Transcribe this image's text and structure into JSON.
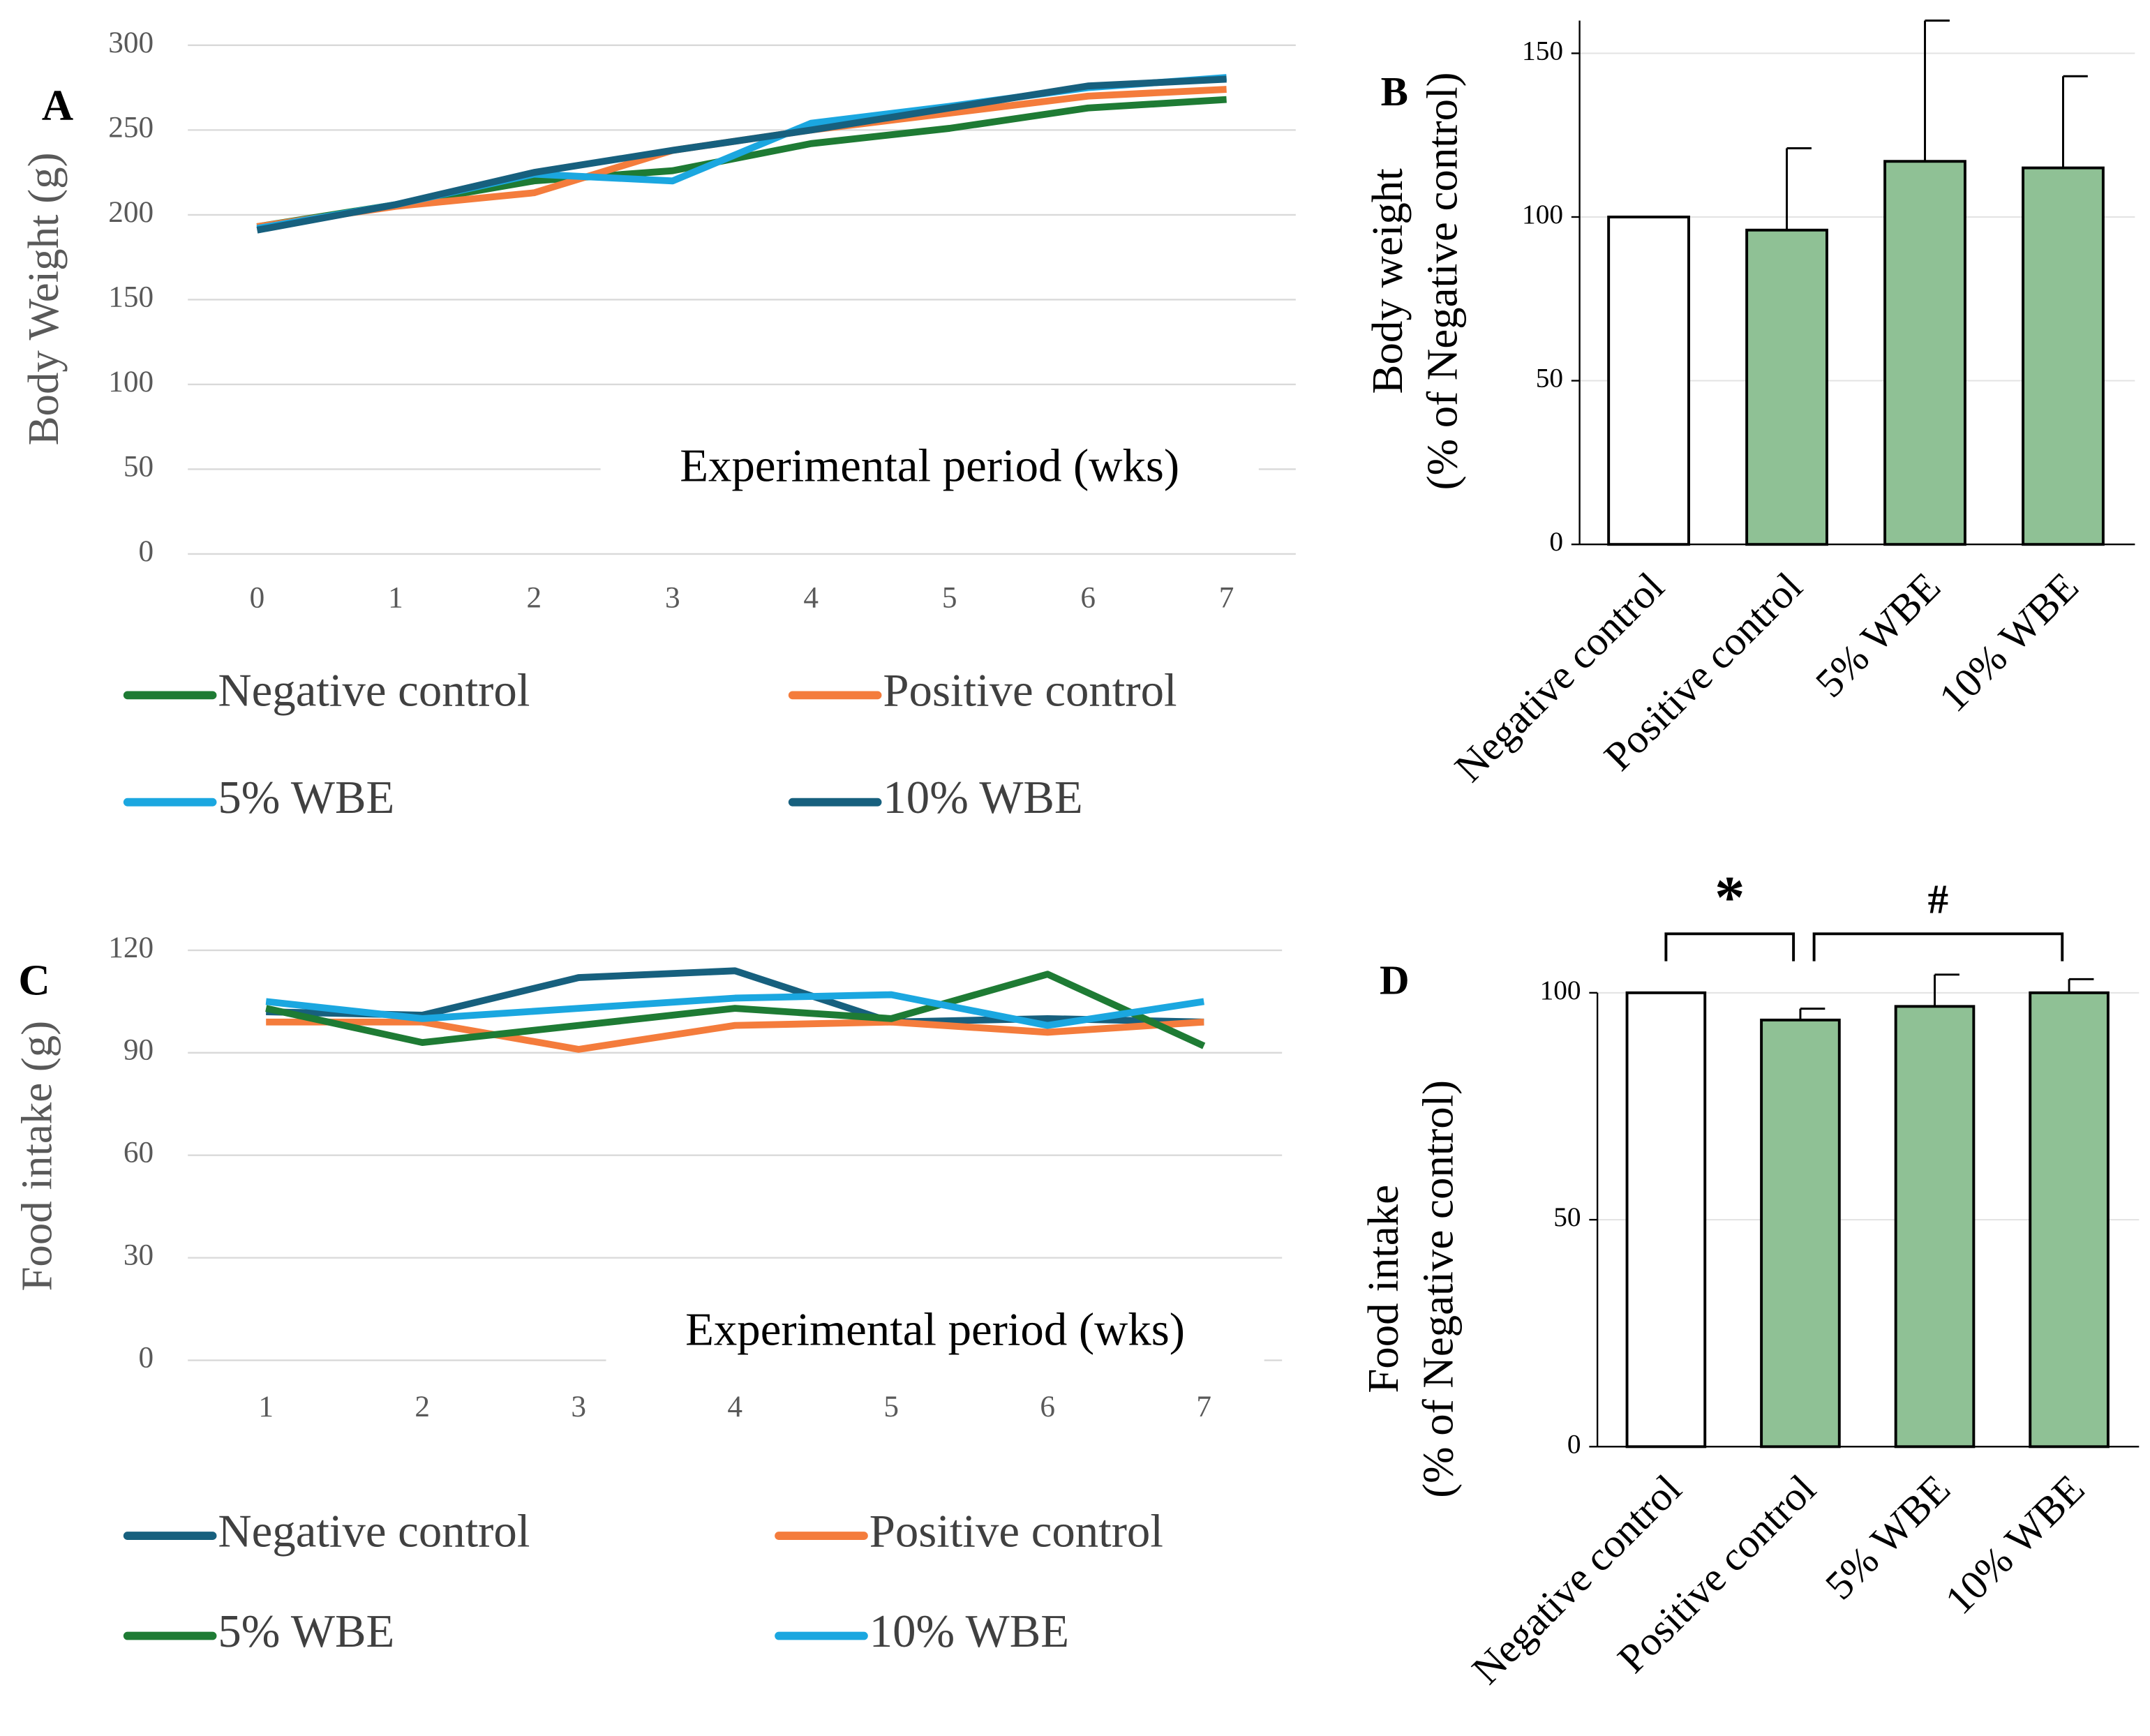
{
  "chart_data": [
    {
      "type": "line",
      "panel_label": "A",
      "ylabel": "Body Weight (g)",
      "xlabel": "Experimental period (wks)",
      "x": [
        0,
        1,
        2,
        3,
        4,
        5,
        6,
        7
      ],
      "xlim": [
        -0.5,
        7.5
      ],
      "xticks": [
        0,
        1,
        2,
        3,
        4,
        5,
        6,
        7
      ],
      "ylim": [
        0,
        300
      ],
      "yticks": [
        0,
        50,
        100,
        150,
        200,
        250,
        300
      ],
      "grid": true,
      "series": [
        {
          "name": "Negative control",
          "color": "#1e7b34",
          "values": [
            193,
            206,
            220,
            226,
            242,
            251,
            263,
            268
          ]
        },
        {
          "name": "Positive control",
          "color": "#f47c3c",
          "values": [
            193,
            205,
            213,
            238,
            250,
            260,
            270,
            274
          ]
        },
        {
          "name": "5% WBE",
          "color": "#1ba7e0",
          "values": [
            192,
            206,
            224,
            220,
            254,
            264,
            275,
            281
          ]
        },
        {
          "name": "10% WBE",
          "color": "#17607e",
          "values": [
            191,
            206,
            225,
            238,
            250,
            263,
            276,
            280
          ]
        }
      ]
    },
    {
      "type": "bar",
      "panel_label": "B",
      "ylabel": [
        "Body weight",
        "(% of Negative control)"
      ],
      "categories": [
        "Negative control",
        "Positive control",
        "5% WBE",
        "10% WBE"
      ],
      "values": [
        100,
        96,
        117,
        115
      ],
      "errors": [
        0,
        25,
        43,
        28
      ],
      "colors": [
        "#ffffff",
        "#8fc195",
        "#8fc195",
        "#8fc195"
      ],
      "ylim": [
        0,
        160
      ],
      "yticks": [
        0,
        50,
        100,
        150
      ],
      "grid": true
    },
    {
      "type": "line",
      "panel_label": "C",
      "ylabel": "Food intake (g)",
      "xlabel": "Experimental period (wks)",
      "x": [
        1,
        2,
        3,
        4,
        5,
        6,
        7
      ],
      "xlim": [
        0.5,
        7.5
      ],
      "xticks": [
        1,
        2,
        3,
        4,
        5,
        6,
        7
      ],
      "ylim": [
        0,
        120
      ],
      "yticks": [
        0,
        30,
        60,
        90,
        120
      ],
      "grid": true,
      "series": [
        {
          "name": "Negative control",
          "color": "#17607e",
          "values": [
            102,
            101,
            112,
            114,
            99,
            100,
            99
          ]
        },
        {
          "name": "Positive control",
          "color": "#f47c3c",
          "values": [
            99,
            99,
            91,
            98,
            99,
            96,
            99
          ]
        },
        {
          "name": "5% WBE",
          "color": "#1e7b34",
          "values": [
            103,
            93,
            98,
            103,
            100,
            113,
            92
          ]
        },
        {
          "name": "10% WBE",
          "color": "#1ba7e0",
          "values": [
            105,
            100,
            103,
            106,
            107,
            98,
            105
          ]
        }
      ]
    },
    {
      "type": "bar",
      "panel_label": "D",
      "ylabel": [
        "Food intake",
        "(% of Negative control)"
      ],
      "categories": [
        "Negative control",
        "Positive control",
        "5% WBE",
        "10% WBE"
      ],
      "values": [
        100,
        94,
        97,
        100
      ],
      "errors": [
        0,
        2.5,
        7,
        3
      ],
      "colors": [
        "#ffffff",
        "#8fc195",
        "#8fc195",
        "#8fc195"
      ],
      "ylim": [
        0,
        100
      ],
      "yticks": [
        0,
        50,
        100
      ],
      "grid": true,
      "annotations": [
        "*",
        "#"
      ]
    }
  ]
}
